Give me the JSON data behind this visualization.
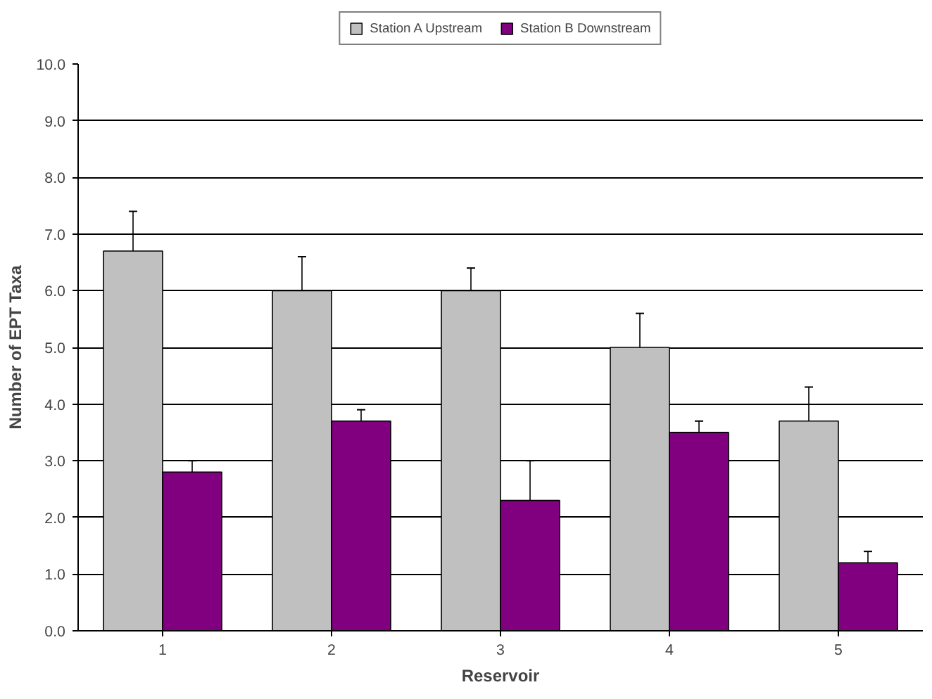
{
  "chart_data": {
    "type": "bar",
    "xlabel": "Reservoir",
    "ylabel": "Number of EPT Taxa",
    "categories": [
      "1",
      "2",
      "3",
      "4",
      "5"
    ],
    "series": [
      {
        "name": "Station A Upstream",
        "color": "#c0c0c0",
        "values": [
          6.7,
          6.0,
          6.0,
          5.0,
          3.7
        ],
        "errors": [
          0.7,
          0.6,
          0.4,
          0.6,
          0.6
        ]
      },
      {
        "name": "Station B Downstream",
        "color": "#800080",
        "values": [
          2.8,
          3.7,
          2.3,
          3.5,
          1.2
        ],
        "errors": [
          0.2,
          0.2,
          0.7,
          0.2,
          0.2
        ]
      }
    ],
    "ylim": [
      0,
      10
    ],
    "yticks": [
      {
        "value": 0,
        "label": "0.0"
      },
      {
        "value": 1,
        "label": "1.0"
      },
      {
        "value": 2,
        "label": "2.0"
      },
      {
        "value": 3,
        "label": "3.0"
      },
      {
        "value": 4,
        "label": "4.0"
      },
      {
        "value": 5,
        "label": "5.0"
      },
      {
        "value": 6,
        "label": "6.0"
      },
      {
        "value": 7,
        "label": "7.0"
      },
      {
        "value": 8,
        "label": "8.0"
      },
      {
        "value": 9,
        "label": "9.0"
      },
      {
        "value": 10,
        "label": "10.0"
      }
    ],
    "grid": "y",
    "legend": "top"
  }
}
